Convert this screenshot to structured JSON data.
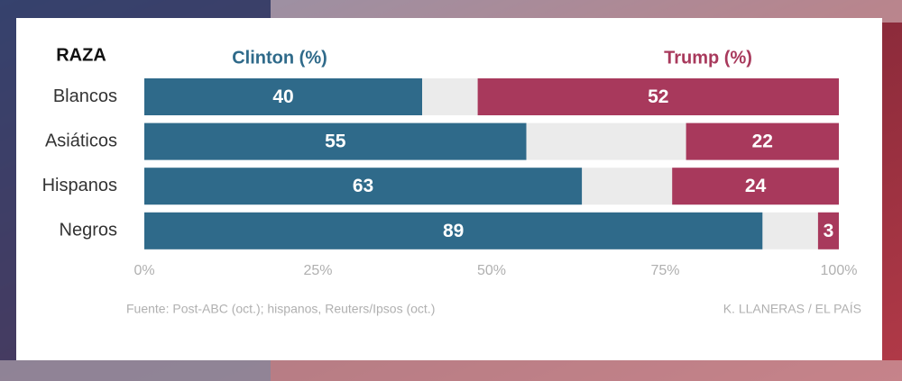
{
  "chart_data": {
    "type": "diverging_bar",
    "category_label": "RAZA",
    "categories": [
      "Blancos",
      "Asiáticos",
      "Hispanos",
      "Negros"
    ],
    "series": [
      {
        "name": "Clinton (%)",
        "color": "#2f6a8a",
        "values": [
          40,
          55,
          63,
          89
        ]
      },
      {
        "name": "Trump (%)",
        "color": "#a8395c",
        "values": [
          52,
          22,
          24,
          3
        ]
      }
    ],
    "xlim": [
      0,
      100
    ],
    "xticks": [
      {
        "value": 0,
        "label": "0%"
      },
      {
        "value": 25,
        "label": "25%"
      },
      {
        "value": 50,
        "label": "50%"
      },
      {
        "value": 75,
        "label": "75%"
      },
      {
        "value": 100,
        "label": "100%"
      }
    ],
    "source": "Fuente: Post-ABC (oct.); hispanos, Reuters/Ipsos (oct.)",
    "credit": "K. LLANERAS  /  EL PAÍS"
  }
}
